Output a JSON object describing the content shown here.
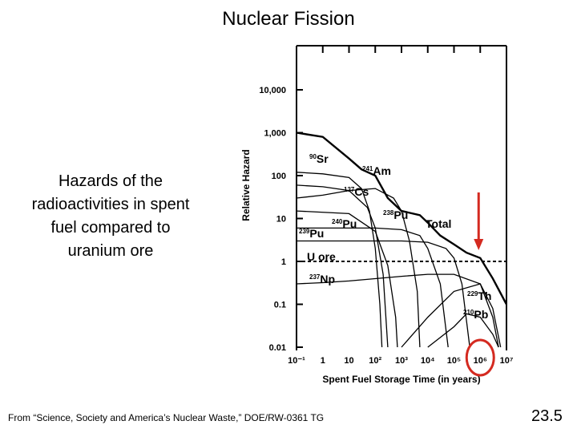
{
  "slide": {
    "title": "Nuclear Fission",
    "description_lines": [
      "Hazards of the",
      "radioactivities in spent",
      "fuel compared to",
      "uranium ore"
    ],
    "source": "From “Science, Society and America’s Nuclear Waste,” DOE/RW-0361 TG",
    "slide_number": "23.5"
  },
  "chart_data": {
    "type": "line",
    "title": "",
    "xlabel": "Spent Fuel Storage Time (in years)",
    "ylabel": "Relative Hazard",
    "xscale": "log",
    "yscale": "log",
    "xlim": [
      0.1,
      10000000
    ],
    "ylim": [
      0.01,
      10000
    ],
    "x_tick_labels": [
      "10⁻¹",
      "1",
      "10",
      "10²",
      "10³",
      "10⁴",
      "10⁵",
      "10⁶",
      "10⁷"
    ],
    "y_tick_labels": [
      "0.01",
      "0.1",
      "1",
      "10",
      "100",
      "1,000",
      "10,000"
    ],
    "y_ticks": [
      0.01,
      0.1,
      1,
      10,
      100,
      1000,
      10000
    ],
    "x_ticks": [
      0.1,
      1,
      10,
      100,
      1000,
      10000,
      100000,
      1000000,
      10000000
    ],
    "reference_line": {
      "name": "U ore",
      "y": 1
    },
    "series": [
      {
        "name": "Total",
        "points": [
          [
            0.1,
            1000
          ],
          [
            1,
            800
          ],
          [
            10,
            250
          ],
          [
            30,
            140
          ],
          [
            100,
            100
          ],
          [
            300,
            30
          ],
          [
            1000,
            15
          ],
          [
            5000,
            12
          ],
          [
            10000,
            8
          ],
          [
            30000,
            4
          ],
          [
            100000,
            2.5
          ],
          [
            300000,
            1.6
          ],
          [
            1000000,
            1.2
          ],
          [
            3000000,
            0.4
          ],
          [
            10000000,
            0.1
          ]
        ]
      },
      {
        "name": "Sr",
        "number": "90",
        "points": [
          [
            0.1,
            120
          ],
          [
            1,
            110
          ],
          [
            10,
            90
          ],
          [
            30,
            50
          ],
          [
            60,
            15
          ],
          [
            100,
            2
          ],
          [
            150,
            0.1
          ],
          [
            180,
            0.01
          ]
        ]
      },
      {
        "name": "Cs",
        "number": "137",
        "points": [
          [
            0.1,
            60
          ],
          [
            1,
            55
          ],
          [
            10,
            45
          ],
          [
            50,
            18
          ],
          [
            100,
            6
          ],
          [
            200,
            0.5
          ],
          [
            300,
            0.01
          ]
        ]
      },
      {
        "name": "Am",
        "number": "241",
        "points": [
          [
            0.1,
            30
          ],
          [
            1,
            35
          ],
          [
            10,
            45
          ],
          [
            100,
            50
          ],
          [
            500,
            30
          ],
          [
            1000,
            15
          ],
          [
            2000,
            3
          ],
          [
            4000,
            0.2
          ],
          [
            5000,
            0.01
          ]
        ]
      },
      {
        "name": "Pu",
        "number": "238",
        "points": [
          [
            0.1,
            15
          ],
          [
            10,
            13
          ],
          [
            100,
            5
          ],
          [
            300,
            0.8
          ],
          [
            600,
            0.05
          ],
          [
            700,
            0.01
          ]
        ]
      },
      {
        "name": "Pu",
        "number": "240",
        "points": [
          [
            0.1,
            6
          ],
          [
            100,
            6
          ],
          [
            1000,
            5.5
          ],
          [
            5000,
            4
          ],
          [
            10000,
            2
          ],
          [
            30000,
            0.3
          ],
          [
            60000,
            0.01
          ]
        ]
      },
      {
        "name": "Pu",
        "number": "239",
        "points": [
          [
            0.1,
            3
          ],
          [
            1000,
            3
          ],
          [
            10000,
            2.8
          ],
          [
            50000,
            2
          ],
          [
            100000,
            1.2
          ],
          [
            200000,
            0.3
          ],
          [
            400000,
            0.01
          ]
        ]
      },
      {
        "name": "Np",
        "number": "237",
        "points": [
          [
            0.1,
            0.3
          ],
          [
            1,
            0.32
          ],
          [
            10,
            0.35
          ],
          [
            1000,
            0.45
          ],
          [
            10000,
            0.5
          ],
          [
            100000,
            0.5
          ],
          [
            1000000,
            0.3
          ],
          [
            3000000,
            0.05
          ],
          [
            5000000,
            0.01
          ]
        ]
      },
      {
        "name": "Th",
        "number": "229",
        "points": [
          [
            1000,
            0.01
          ],
          [
            10000,
            0.05
          ],
          [
            100000,
            0.2
          ],
          [
            1000000,
            0.3
          ],
          [
            3000000,
            0.08
          ],
          [
            6000000,
            0.01
          ]
        ]
      },
      {
        "name": "Pb",
        "number": "210",
        "points": [
          [
            10000,
            0.01
          ],
          [
            100000,
            0.03
          ],
          [
            300000,
            0.06
          ],
          [
            1000000,
            0.05
          ],
          [
            3000000,
            0.02
          ],
          [
            5000000,
            0.01
          ]
        ]
      }
    ],
    "series_labels": [
      {
        "key": "Sr",
        "number": "90",
        "name": "Sr"
      },
      {
        "key": "Am",
        "number": "241",
        "name": "Am"
      },
      {
        "key": "Cs",
        "number": "137",
        "name": "Cs"
      },
      {
        "key": "Pu238",
        "number": "238",
        "name": "Pu"
      },
      {
        "key": "Pu240",
        "number": "240",
        "name": "Pu"
      },
      {
        "key": "Pu239",
        "number": "239",
        "name": "Pu"
      },
      {
        "key": "Total",
        "number": "",
        "name": "Total"
      },
      {
        "key": "Uore",
        "number": "",
        "name": "U ore"
      },
      {
        "key": "Np",
        "number": "237",
        "name": "Np"
      },
      {
        "key": "Th",
        "number": "229",
        "name": "Th"
      },
      {
        "key": "Pb",
        "number": "210",
        "name": "Pb"
      }
    ],
    "annotations": [
      {
        "type": "arrow",
        "color": "#d42a20",
        "points_to_x": 1000000,
        "points_to_y": 1.2
      },
      {
        "type": "circle",
        "color": "#d42a20",
        "around_tick": "10⁶"
      }
    ]
  }
}
